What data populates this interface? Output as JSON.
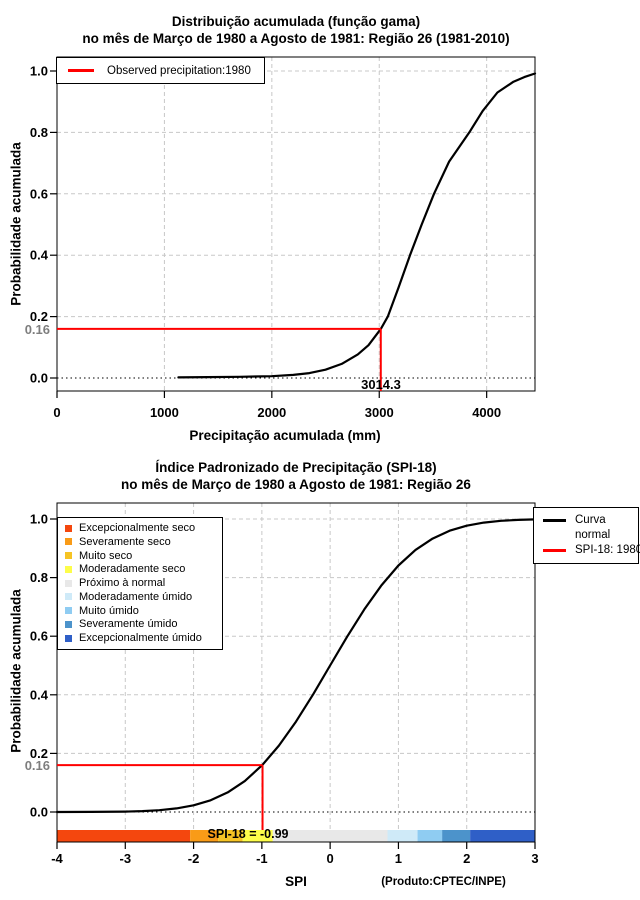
{
  "colors": {
    "annotation_red": "#FF0000",
    "curve_black": "#000000",
    "grid_gray": "#C8C8C8",
    "grid_dark": "#000000",
    "prob_label_gray": "#7E7E7E"
  },
  "chart_data": [
    {
      "type": "line",
      "title": [
        "Distribuição acumulada (função gama)",
        "no mês de Março de 1980 a Agosto de 1981: Região 26 (1981-2010)"
      ],
      "xlabel": "Precipitação acumulada (mm)",
      "ylabel": "Probabilidade acumulada",
      "xlim": [
        0,
        4450
      ],
      "ylim": [
        0,
        1
      ],
      "grid": true,
      "xticks": [
        {
          "v": 0,
          "label": "0"
        },
        {
          "v": 1000,
          "label": "1000"
        },
        {
          "v": 2000,
          "label": "2000"
        },
        {
          "v": 3000,
          "label": "3000"
        },
        {
          "v": 4000,
          "label": "4000"
        }
      ],
      "yticks": [
        {
          "v": 0,
          "label": "0.0"
        },
        {
          "v": 0.2,
          "label": "0.2"
        },
        {
          "v": 0.4,
          "label": "0.4"
        },
        {
          "v": 0.6,
          "label": "0.6"
        },
        {
          "v": 0.8,
          "label": "0.8"
        },
        {
          "v": 1.0,
          "label": "1.0"
        }
      ],
      "legend": [
        {
          "label": "Observed precipitation:1980",
          "color": "#FF0000"
        }
      ],
      "annotation": {
        "probability": 0.16,
        "probability_label": "0.16",
        "value": 3014.3,
        "value_label": "3014.3"
      },
      "series": [
        {
          "name": "Gamma cumulative distribution",
          "color": "#000000",
          "points": [
            [
              1130,
              0.002
            ],
            [
              1400,
              0.003
            ],
            [
              1700,
              0.004
            ],
            [
              2000,
              0.006
            ],
            [
              2200,
              0.01
            ],
            [
              2350,
              0.016
            ],
            [
              2500,
              0.027
            ],
            [
              2650,
              0.046
            ],
            [
              2800,
              0.077
            ],
            [
              2900,
              0.107
            ],
            [
              3014.3,
              0.16
            ],
            [
              3080,
              0.2
            ],
            [
              3180,
              0.295
            ],
            [
              3286,
              0.4
            ],
            [
              3395,
              0.5
            ],
            [
              3510,
              0.6
            ],
            [
              3650,
              0.705
            ],
            [
              3838,
              0.8
            ],
            [
              3963,
              0.87
            ],
            [
              4100,
              0.93
            ],
            [
              4250,
              0.965
            ],
            [
              4350,
              0.98
            ],
            [
              4450,
              0.992
            ]
          ]
        }
      ]
    },
    {
      "type": "line",
      "title": [
        "Índice Padronizado de Precipitação (SPI-18)",
        "no mês de Março de 1980 a Agosto de 1981: Região 26"
      ],
      "xlabel": "SPI",
      "ylabel": "Probabilidade acumulada",
      "footer": "(Produto:CPTEC/INPE)",
      "xlim": [
        -4,
        3
      ],
      "ylim": [
        0,
        1
      ],
      "grid": true,
      "xticks": [
        {
          "v": -4,
          "label": "-4"
        },
        {
          "v": -3,
          "label": "-3"
        },
        {
          "v": -2,
          "label": "-2"
        },
        {
          "v": -1,
          "label": "-1"
        },
        {
          "v": 0,
          "label": "0"
        },
        {
          "v": 1,
          "label": "1"
        },
        {
          "v": 2,
          "label": "2"
        },
        {
          "v": 3,
          "label": "3"
        }
      ],
      "yticks": [
        {
          "v": 0,
          "label": "0.0"
        },
        {
          "v": 0.2,
          "label": "0.2"
        },
        {
          "v": 0.4,
          "label": "0.4"
        },
        {
          "v": 0.6,
          "label": "0.6"
        },
        {
          "v": 0.8,
          "label": "0.8"
        },
        {
          "v": 1.0,
          "label": "1.0"
        }
      ],
      "categories": [
        {
          "label": "Excepcionalmente seco",
          "color": "#F4470E",
          "range": [
            -4,
            -2.05
          ]
        },
        {
          "label": "Severamente seco",
          "color": "#F99B17",
          "range": [
            -2.05,
            -1.64
          ]
        },
        {
          "label": "Muito seco",
          "color": "#F6C425",
          "range": [
            -1.64,
            -1.28
          ]
        },
        {
          "label": "Moderadamente seco",
          "color": "#FDFD4A",
          "range": [
            -1.28,
            -0.84
          ]
        },
        {
          "label": "Próximo à normal",
          "color": "#E8E8E8",
          "range": [
            -0.84,
            0.84
          ]
        },
        {
          "label": "Moderadamente úmido",
          "color": "#CFEAF8",
          "range": [
            0.84,
            1.28
          ]
        },
        {
          "label": "Muito úmido",
          "color": "#8FCCF2",
          "range": [
            1.28,
            1.64
          ]
        },
        {
          "label": "Severamente úmido",
          "color": "#4C93CB",
          "range": [
            1.64,
            2.05
          ]
        },
        {
          "label": "Excepcionalmente úmido",
          "color": "#2F5FC7",
          "range": [
            2.05,
            3
          ]
        }
      ],
      "legend2": [
        {
          "lines": [
            "Curva",
            "normal"
          ],
          "color": "#000000"
        },
        {
          "lines": [
            "SPI-18: 1980"
          ],
          "color": "#FF0000"
        }
      ],
      "bar_label": "SPI-18 = -0.99",
      "annotation": {
        "probability": 0.16,
        "probability_label": "0.16",
        "value": -0.99,
        "value_label": "-0.99"
      },
      "series": [
        {
          "name": "Curva normal",
          "color": "#000000",
          "points": [
            [
              -4,
              3e-05
            ],
            [
              -3.5,
              0.0002
            ],
            [
              -3,
              0.0013
            ],
            [
              -2.75,
              0.003
            ],
            [
              -2.5,
              0.0062
            ],
            [
              -2.25,
              0.0122
            ],
            [
              -2,
              0.0228
            ],
            [
              -1.75,
              0.0401
            ],
            [
              -1.5,
              0.0668
            ],
            [
              -1.25,
              0.1056
            ],
            [
              -0.99,
              0.1611
            ],
            [
              -0.75,
              0.2266
            ],
            [
              -0.5,
              0.3085
            ],
            [
              -0.25,
              0.4013
            ],
            [
              0,
              0.5
            ],
            [
              0.25,
              0.5987
            ],
            [
              0.5,
              0.6915
            ],
            [
              0.75,
              0.7734
            ],
            [
              1,
              0.8413
            ],
            [
              1.25,
              0.8944
            ],
            [
              1.5,
              0.9332
            ],
            [
              1.75,
              0.9599
            ],
            [
              2,
              0.9772
            ],
            [
              2.25,
              0.9878
            ],
            [
              2.5,
              0.9938
            ],
            [
              2.75,
              0.997
            ],
            [
              3,
              0.9987
            ]
          ]
        }
      ]
    }
  ]
}
